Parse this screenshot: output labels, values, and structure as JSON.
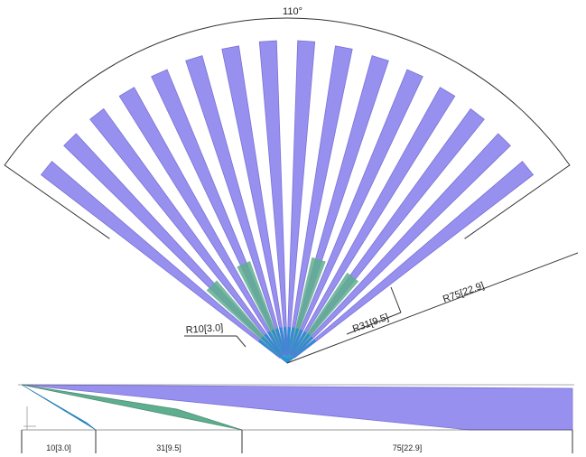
{
  "figure": {
    "angle_label": "110°",
    "r10_label": "R10[3.0]",
    "r31_label": "R31[9.5]",
    "r75_label": "R75[22.9]",
    "bottom_dim_10": "10[3.0]",
    "bottom_dim_31": "31[9.5]",
    "bottom_dim_75": "75[22.9]"
  },
  "colors": {
    "purple": "#9890ee",
    "purple_edge": "#7a72d8",
    "green": "#5fae8f",
    "blue": "#2a8fd0",
    "line": "#333333"
  },
  "fan": {
    "blade_count": 16
  }
}
